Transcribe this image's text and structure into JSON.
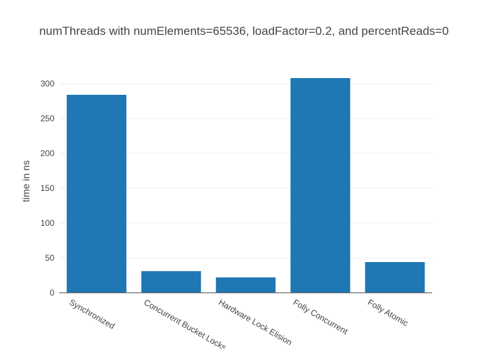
{
  "chart_data": {
    "type": "bar",
    "title": "numThreads with numElements=65536, loadFactor=0.2, and percentReads=0",
    "xlabel": "",
    "ylabel": "time in ns",
    "categories": [
      "Synchronized",
      "Concurrent Bucket Locks",
      "Hardware Lock Elision",
      "Folly Concurrent",
      "Folly Atomic"
    ],
    "values": [
      284,
      31,
      22,
      308,
      44
    ],
    "ylim": [
      0,
      320
    ],
    "yticks": [
      0,
      50,
      100,
      150,
      200,
      250,
      300
    ],
    "grid": true,
    "legend": "none",
    "bar_color": "#1f77b4",
    "grid_color": "#eeeeee",
    "axis_color": "#444444"
  }
}
